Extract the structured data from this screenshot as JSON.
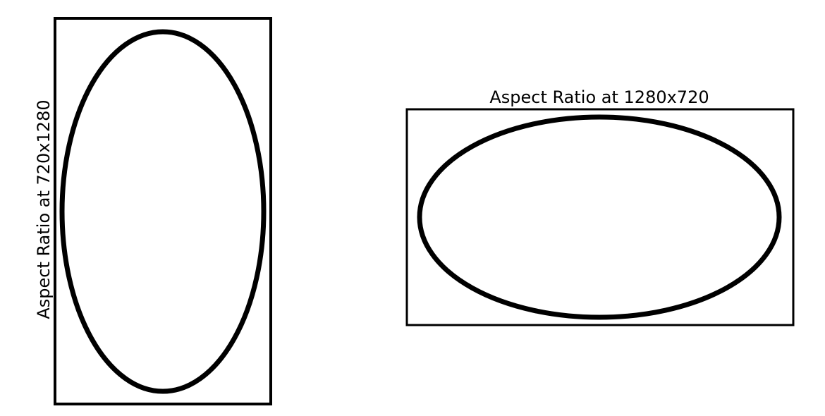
{
  "portrait": {
    "label": "Aspect Ratio at 720x1280"
  },
  "landscape": {
    "label": "Aspect Ratio at 1280x720"
  },
  "colors": {
    "stroke": "#000000",
    "background": "#ffffff"
  }
}
